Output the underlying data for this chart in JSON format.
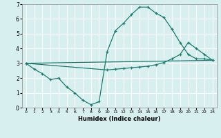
{
  "line1_x": [
    0,
    1,
    2,
    3,
    4,
    5,
    6,
    7,
    8,
    9,
    10,
    11,
    12,
    13,
    14,
    15,
    16,
    17,
    18,
    19,
    20,
    21,
    22,
    23
  ],
  "line1_y": [
    3.0,
    2.6,
    2.3,
    1.9,
    2.0,
    1.4,
    1.0,
    0.5,
    0.2,
    0.4,
    3.8,
    5.2,
    5.7,
    6.3,
    6.8,
    6.8,
    6.4,
    6.1,
    5.3,
    4.4,
    3.6,
    3.3,
    3.3,
    3.2
  ],
  "line2_x": [
    0,
    23
  ],
  "line2_y": [
    3.0,
    3.2
  ],
  "line3_x": [
    0,
    10,
    11,
    12,
    13,
    14,
    15,
    16,
    17,
    18,
    19,
    20,
    21,
    22,
    23
  ],
  "line3_y": [
    3.0,
    2.55,
    2.6,
    2.65,
    2.7,
    2.75,
    2.8,
    2.9,
    3.05,
    3.3,
    3.6,
    4.4,
    4.0,
    3.6,
    3.2
  ],
  "color": "#1a7a6e",
  "bg_color": "#d8eff0",
  "grid_color": "#ffffff",
  "xlabel": "Humidex (Indice chaleur)",
  "xlim": [
    -0.5,
    23.5
  ],
  "ylim": [
    0,
    7
  ],
  "yticks": [
    0,
    1,
    2,
    3,
    4,
    5,
    6,
    7
  ],
  "xticks": [
    0,
    1,
    2,
    3,
    4,
    5,
    6,
    7,
    8,
    9,
    10,
    11,
    12,
    13,
    14,
    15,
    16,
    17,
    18,
    19,
    20,
    21,
    22,
    23
  ]
}
